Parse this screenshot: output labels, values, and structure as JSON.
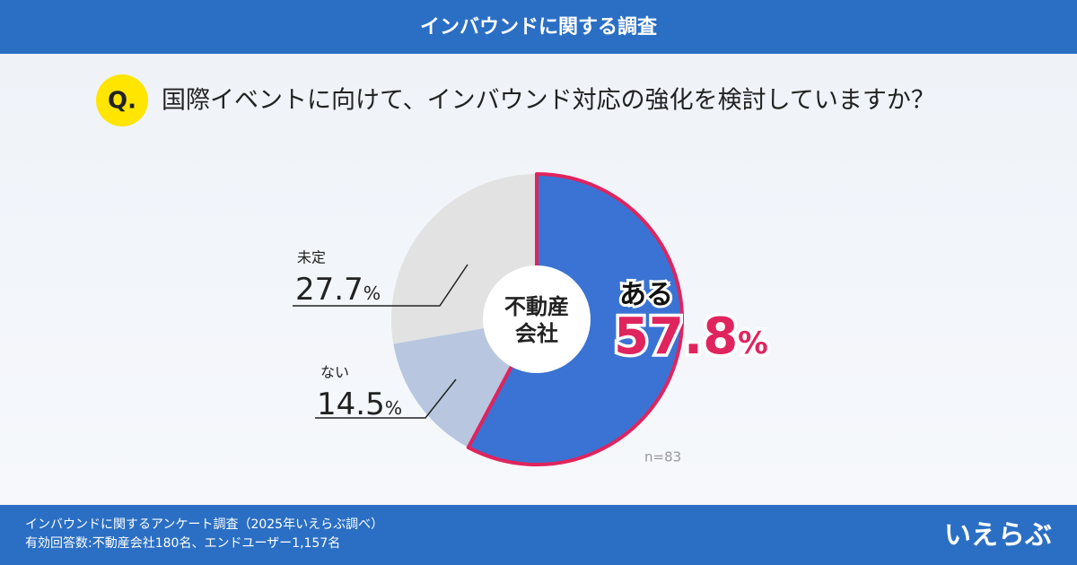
{
  "header": {
    "title": "インバウンドに関する調査"
  },
  "question": {
    "marker": "Q.",
    "text": "国際イベントに向けて、インバウンド対応の強化を検討していますか？"
  },
  "chart_data": {
    "type": "donut",
    "categories": [
      "ある",
      "ない",
      "未定"
    ],
    "values": [
      57.8,
      14.5,
      27.7
    ],
    "value_labels": [
      "57.8%",
      "14.5%",
      "27.7%"
    ],
    "colors": [
      "#3a73d3",
      "#b8c7df",
      "#e2e2e2"
    ],
    "highlight_color": "#e0245e",
    "center_label": [
      "不動産",
      "会社"
    ],
    "note": "n=83"
  },
  "footer": {
    "lines": [
      "インバウンドに関するアンケート調査（2025年いえらぶ調べ）",
      "有効回答数:不動産会社180名、エンドユーザー1,157名"
    ],
    "logo": "いえらぶ"
  }
}
